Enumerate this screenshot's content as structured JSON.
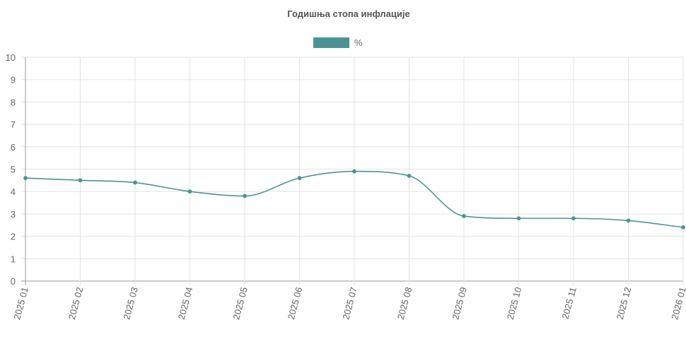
{
  "chart_data": {
    "type": "line",
    "title": "Годишња стопа инфлације",
    "categories": [
      "2025 01",
      "2025 02",
      "2025 03",
      "2025 04",
      "2025 05",
      "2025 06",
      "2025 07",
      "2025 08",
      "2025 09",
      "2025 10",
      "2025 11",
      "2025 12",
      "2026 01"
    ],
    "series": [
      {
        "name": "%",
        "values": [
          4.6,
          4.5,
          4.4,
          4.0,
          3.8,
          4.6,
          4.9,
          4.7,
          2.9,
          2.8,
          2.8,
          2.7,
          2.4
        ],
        "color": "#4b9494"
      }
    ],
    "ylim": [
      0,
      10
    ],
    "yticks": [
      0,
      1,
      2,
      3,
      4,
      5,
      6,
      7,
      8,
      9,
      10
    ],
    "grid": true,
    "legend_position": "top-center",
    "xlabel": "",
    "ylabel": ""
  }
}
